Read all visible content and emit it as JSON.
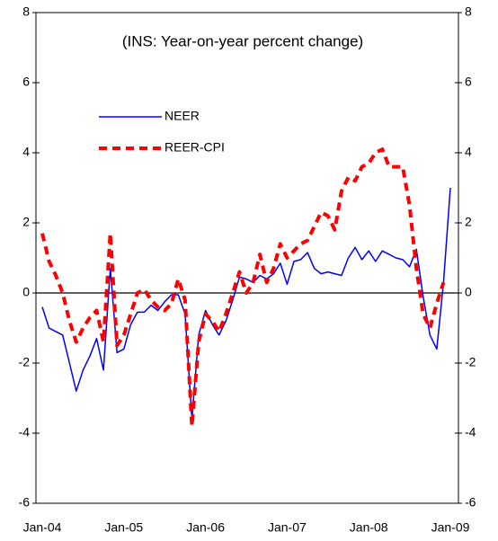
{
  "chart_data": {
    "type": "line",
    "annotation": "(INS: Year-on-year percent change)",
    "categories": [
      "Jan-04",
      null,
      null,
      null,
      null,
      null,
      null,
      null,
      null,
      null,
      null,
      null,
      "Jan-05",
      null,
      null,
      null,
      null,
      null,
      null,
      null,
      null,
      null,
      null,
      null,
      "Jan-06",
      null,
      null,
      null,
      null,
      null,
      null,
      null,
      null,
      null,
      null,
      null,
      "Jan-07",
      null,
      null,
      null,
      null,
      null,
      null,
      null,
      null,
      null,
      null,
      null,
      "Jan-08",
      null,
      null,
      null,
      null,
      null,
      null,
      null,
      null,
      null,
      null,
      null,
      "Jan-09"
    ],
    "series": [
      {
        "name": "NEER",
        "color": "#0000ff",
        "style": "solid",
        "values": [
          -0.4,
          -1.0,
          -1.1,
          -1.2,
          -2.0,
          -2.8,
          -2.2,
          -1.8,
          -1.3,
          -2.2,
          0.7,
          -1.7,
          -1.6,
          -0.9,
          -0.55,
          -0.55,
          -0.35,
          -0.5,
          -0.25,
          -0.05,
          -0.05,
          -0.6,
          -3.6,
          -1.2,
          -0.5,
          -0.9,
          -1.2,
          -0.8,
          -0.2,
          0.45,
          0.4,
          0.3,
          0.5,
          0.4,
          0.55,
          0.85,
          0.25,
          0.9,
          0.95,
          1.15,
          0.7,
          0.55,
          0.6,
          0.55,
          0.5,
          1.0,
          1.3,
          0.95,
          1.2,
          0.9,
          1.2,
          1.1,
          1.0,
          0.95,
          0.75,
          1.25,
          -0.1,
          -1.2,
          -1.6,
          0.3,
          3.0
        ]
      },
      {
        "name": "REER-CPI",
        "color": "#ff0000",
        "style": "dashed",
        "values": [
          1.7,
          0.9,
          0.5,
          0.0,
          -0.8,
          -1.4,
          -1.0,
          -0.7,
          -0.5,
          -1.4,
          1.7,
          -1.5,
          -1.2,
          -0.6,
          0.0,
          0.1,
          -0.2,
          -0.4,
          -0.5,
          -0.3,
          0.4,
          -0.2,
          -3.8,
          -1.4,
          -0.6,
          -0.8,
          -1.1,
          -0.6,
          0.0,
          0.6,
          0.0,
          0.3,
          1.1,
          0.3,
          0.7,
          1.4,
          1.0,
          1.2,
          1.4,
          1.5,
          1.9,
          2.3,
          2.2,
          1.8,
          2.9,
          3.3,
          3.2,
          3.6,
          3.7,
          4.0,
          4.1,
          3.6,
          3.6,
          3.6,
          2.5,
          0.7,
          -0.6,
          -1.0,
          -0.3,
          0.3,
          null
        ]
      }
    ],
    "ylim": [
      -6,
      8
    ],
    "yticks": [
      -6,
      -4,
      -2,
      0,
      2,
      4,
      6,
      8
    ],
    "y2lim": [
      -6,
      8
    ],
    "y2ticks": [
      -6,
      -4,
      -2,
      0,
      2,
      4,
      6,
      8
    ]
  }
}
